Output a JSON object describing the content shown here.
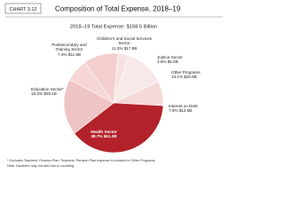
{
  "chart_data": {
    "type": "pie",
    "badge": "CHART 3.12",
    "title": "Composition of Total Expense, 2018–19",
    "subtitle": "2018–19 Total Expense: $158.5 Billion",
    "categories": [
      "Children's and Social Services Sector",
      "Justice Sector",
      "Other Programs",
      "Interest on Debt",
      "Health Sector",
      "Education Sector*",
      "Postsecondary and Training Sector"
    ],
    "values": [
      11.3,
      3.5,
      13.1,
      7.9,
      38.7,
      18.3,
      7.4
    ],
    "value_labels": [
      "11.3% $17.9B",
      "3.5% $5.5B",
      "13.1% $20.8B",
      "7.9% $12.5B",
      "38.7% $61.3B",
      "18.3% $29.1B",
      "7.4% $11.8B"
    ],
    "colors": [
      "#f3cfcf",
      "#f7e1e1",
      "#f9e8e8",
      "#f5d8d8",
      "#b3222a",
      "#efc4c4",
      "#f5d5d5"
    ],
    "notes": [
      "* Excludes Teachers' Pension Plan. Teachers' Pension Plan expense is included in Other Programs.",
      "Note: Numbers may not add due to rounding."
    ]
  }
}
